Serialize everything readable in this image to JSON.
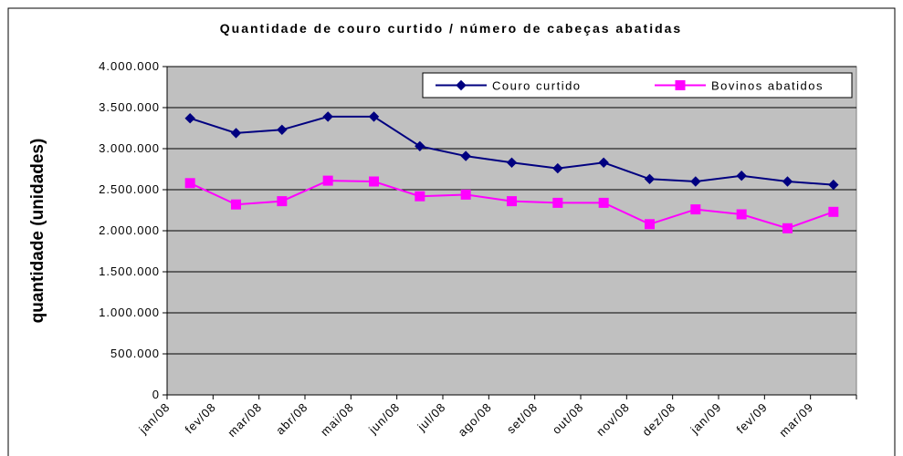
{
  "chart_data": {
    "type": "line",
    "title": "Quantidade de couro curtido / número de cabeças abatidas",
    "y_label": "quantidade (unidades)",
    "categories": [
      "jan/08",
      "fev/08",
      "mar/08",
      "abr/08",
      "mai/08",
      "jun/08",
      "jul/08",
      "ago/08",
      "set/08",
      "out/08",
      "nov/08",
      "dez/08",
      "jan/09",
      "fev/09",
      "mar/09"
    ],
    "series": [
      {
        "name": "Couro curtido",
        "color": "#000080",
        "marker": "diamond",
        "values": [
          3370000,
          3190000,
          3230000,
          3390000,
          3390000,
          3030000,
          2910000,
          2830000,
          2760000,
          2830000,
          2630000,
          2600000,
          2670000,
          2600000,
          2560000
        ]
      },
      {
        "name": "Bovinos abatidos",
        "color": "#ff00ff",
        "marker": "square",
        "values": [
          2580000,
          2320000,
          2360000,
          2610000,
          2600000,
          2420000,
          2440000,
          2360000,
          2340000,
          2340000,
          2080000,
          2260000,
          2200000,
          2030000,
          2230000
        ]
      }
    ],
    "ylim": [
      0,
      4000000
    ],
    "yticks": [
      0,
      {
        "value": 500000,
        "label": "500.000"
      },
      {
        "value": 1000000,
        "label": "1.000.000"
      },
      {
        "value": 1500000,
        "label": "1.500.000"
      },
      {
        "value": 2000000,
        "label": "2.000.000"
      },
      {
        "value": 2500000,
        "label": "2.500.000"
      },
      {
        "value": 3000000,
        "label": "3.000.000"
      },
      {
        "value": 3500000,
        "label": "3.500.000"
      },
      {
        "value": 4000000,
        "label": "4.000.000"
      }
    ],
    "grid": true,
    "legend": "top-right",
    "plot_background": "#c0c0c0"
  }
}
